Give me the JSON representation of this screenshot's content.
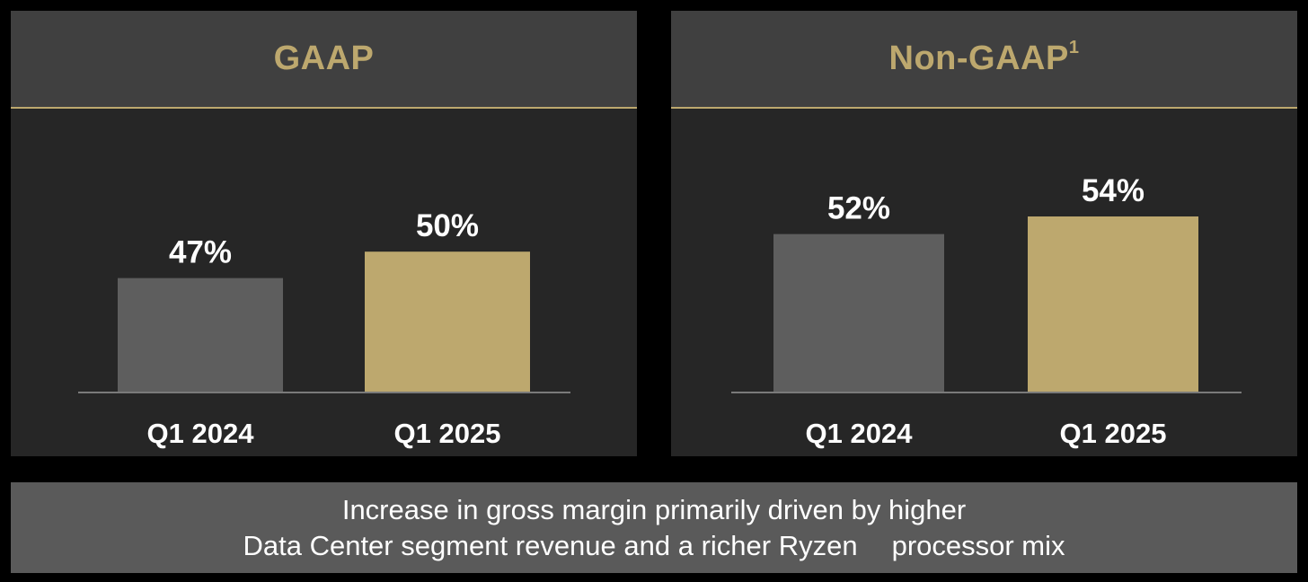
{
  "colors": {
    "background": "#000000",
    "panel_bg": "#262626",
    "header_bg": "#404040",
    "gold": "#bda86e",
    "gray_bar": "#5e5e5e",
    "baseline": "#7a7a7a",
    "caption_bg": "#5a5a5a",
    "text": "#ffffff"
  },
  "chart_data": [
    {
      "type": "bar",
      "title": "GAAP",
      "title_superscript": "",
      "categories": [
        "Q1 2024",
        "Q1 2025"
      ],
      "values": [
        47,
        50
      ],
      "value_labels": [
        "47%",
        "50%"
      ],
      "bar_colors": [
        "#5e5e5e",
        "#bda86e"
      ],
      "ylim": [
        34,
        54
      ],
      "grid": false,
      "legend": "none"
    },
    {
      "type": "bar",
      "title": "Non-GAAP",
      "title_superscript": "1",
      "categories": [
        "Q1 2024",
        "Q1 2025"
      ],
      "values": [
        52,
        54
      ],
      "value_labels": [
        "52%",
        "54%"
      ],
      "bar_colors": [
        "#5e5e5e",
        "#bda86e"
      ],
      "ylim": [
        34,
        54
      ],
      "grid": false,
      "legend": "none"
    }
  ],
  "caption": {
    "line1": "Increase in gross margin primarily driven by higher",
    "line2a": "Data Center segment revenue and a richer Ryzen",
    "line2b": "processor mix"
  }
}
